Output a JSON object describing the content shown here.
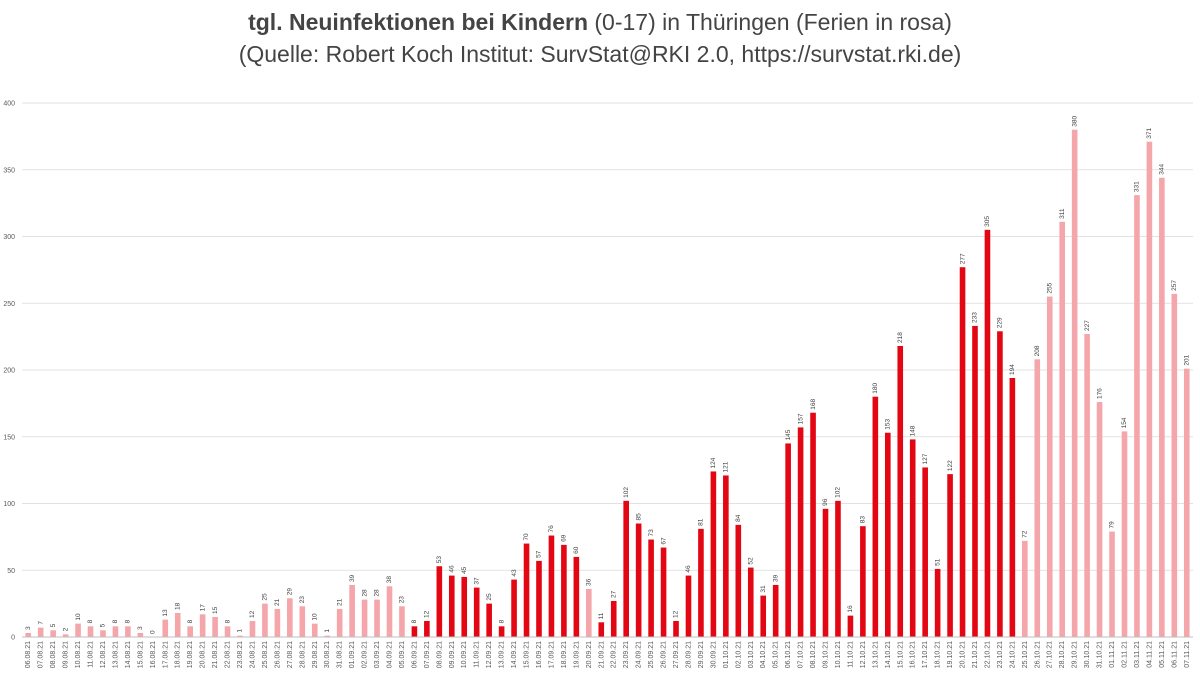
{
  "title": {
    "bold": "tgl. Neuinfektionen bei Kindern",
    "rest": " (0-17) in Thüringen (Ferien in rosa)",
    "line2": "(Quelle: Robert Koch Institut: SurvStat@RKI 2.0, https://survstat.rki.de)"
  },
  "colors": {
    "school": "#e30613",
    "holiday": "#f4a6aa",
    "grid": "#d9d9d9",
    "axis": "#bfbfbf"
  },
  "chart_data": {
    "type": "bar",
    "title": "tgl. Neuinfektionen bei Kindern (0-17) in Thüringen (Ferien in rosa)",
    "ylim": [
      0,
      400
    ],
    "yticks": [
      0,
      50,
      100,
      150,
      200,
      250,
      300,
      350,
      400
    ],
    "grid": true,
    "categories": [
      "06.08.21",
      "07.08.21",
      "08.08.21",
      "09.08.21",
      "10.08.21",
      "11.08.21",
      "12.08.21",
      "13.08.21",
      "14.08.21",
      "15.08.21",
      "16.08.21",
      "17.08.21",
      "18.08.21",
      "19.08.21",
      "20.08.21",
      "21.08.21",
      "22.08.21",
      "23.08.21",
      "24.08.21",
      "25.08.21",
      "26.08.21",
      "27.08.21",
      "28.08.21",
      "29.08.21",
      "30.08.21",
      "31.08.21",
      "01.09.21",
      "02.09.21",
      "03.09.21",
      "04.09.21",
      "05.09.21",
      "06.09.21",
      "07.09.21",
      "08.09.21",
      "09.09.21",
      "10.09.21",
      "11.09.21",
      "12.09.21",
      "13.09.21",
      "14.09.21",
      "15.09.21",
      "16.09.21",
      "17.09.21",
      "18.09.21",
      "19.09.21",
      "20.09.21",
      "21.09.21",
      "22.09.21",
      "23.09.21",
      "24.09.21",
      "25.09.21",
      "26.09.21",
      "27.09.21",
      "28.09.21",
      "29.09.21",
      "30.09.21",
      "01.10.21",
      "02.10.21",
      "03.10.21",
      "04.10.21",
      "05.10.21",
      "06.10.21",
      "07.10.21",
      "08.10.21",
      "09.10.21",
      "10.10.21",
      "11.10.21",
      "12.10.21",
      "13.10.21",
      "14.10.21",
      "15.10.21",
      "16.10.21",
      "17.10.21",
      "18.10.21",
      "19.10.21",
      "20.10.21",
      "21.10.21",
      "22.10.21",
      "23.10.21",
      "24.10.21",
      "25.10.21",
      "26.10.21",
      "27.10.21",
      "28.10.21",
      "29.10.21",
      "30.10.21",
      "31.10.21",
      "01.11.21",
      "02.11.21",
      "03.11.21",
      "04.11.21",
      "05.11.21",
      "06.11.21",
      "07.11.21"
    ],
    "values": [
      3,
      7,
      5,
      2,
      10,
      8,
      5,
      8,
      8,
      3,
      0,
      13,
      18,
      8,
      17,
      15,
      8,
      1,
      12,
      25,
      21,
      29,
      23,
      10,
      1,
      21,
      39,
      28,
      28,
      38,
      23,
      8,
      12,
      53,
      46,
      45,
      37,
      25,
      8,
      43,
      70,
      57,
      76,
      69,
      60,
      36,
      11,
      27,
      102,
      85,
      73,
      67,
      12,
      46,
      81,
      124,
      121,
      84,
      52,
      31,
      39,
      145,
      157,
      168,
      96,
      102,
      16,
      83,
      180,
      153,
      218,
      148,
      127,
      51,
      122,
      277,
      233,
      305,
      229,
      194,
      72,
      208,
      255,
      311,
      380,
      227,
      176,
      79,
      154,
      331,
      371,
      344,
      257,
      201
    ],
    "holiday": [
      1,
      1,
      1,
      1,
      1,
      1,
      1,
      1,
      1,
      1,
      1,
      1,
      1,
      1,
      1,
      1,
      1,
      1,
      1,
      1,
      1,
      1,
      1,
      1,
      1,
      1,
      1,
      1,
      1,
      1,
      1,
      0,
      0,
      0,
      0,
      0,
      0,
      0,
      0,
      0,
      0,
      0,
      0,
      0,
      0,
      1,
      0,
      0,
      0,
      0,
      0,
      0,
      0,
      0,
      0,
      0,
      0,
      0,
      0,
      0,
      0,
      0,
      0,
      0,
      0,
      0,
      0,
      0,
      0,
      0,
      0,
      0,
      0,
      0,
      0,
      0,
      0,
      0,
      0,
      0,
      1,
      1,
      1,
      1,
      1,
      1,
      1,
      1,
      1,
      1,
      1,
      1,
      1,
      1
    ]
  }
}
